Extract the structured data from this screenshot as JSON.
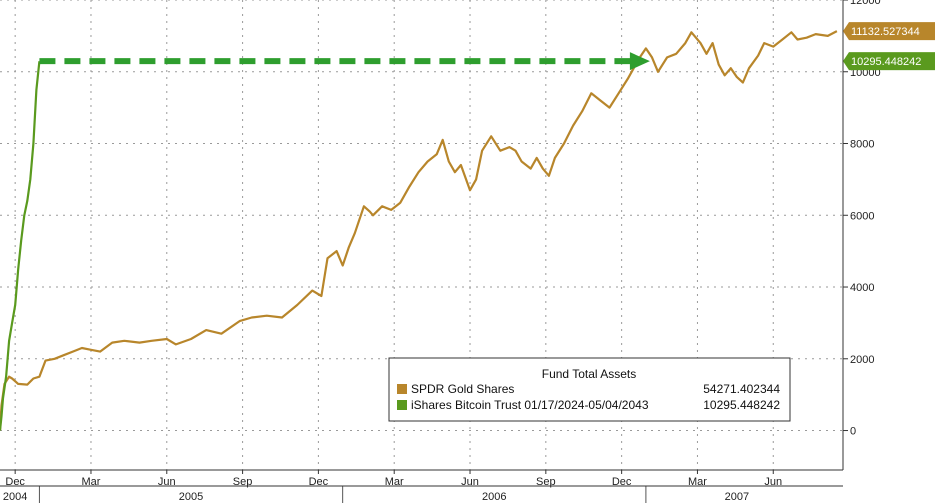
{
  "chart_data": {
    "type": "line",
    "title": "",
    "xlabel": "",
    "ylabel": "",
    "ylim": [
      -1100,
      12000
    ],
    "y_ticks": [
      0,
      2000,
      4000,
      6000,
      8000,
      10000,
      12000
    ],
    "grid": true,
    "legend": {
      "title": "Fund Total Assets",
      "placement": "bottom-right",
      "entries": [
        {
          "name": "SPDR Gold Shares",
          "value": "54271.402344",
          "color": "#B8862B"
        },
        {
          "name": "iShares Bitcoin Trust 01/17/2024-05/04/2043",
          "value": "10295.448242",
          "color": "#5A9A1E"
        }
      ]
    },
    "x_axis": {
      "month_ticks": [
        {
          "label": "Dec",
          "x": 2004.92
        },
        {
          "label": "Mar",
          "x": 2005.17
        },
        {
          "label": "Jun",
          "x": 2005.42
        },
        {
          "label": "Sep",
          "x": 2005.67
        },
        {
          "label": "Dec",
          "x": 2005.92
        },
        {
          "label": "Mar",
          "x": 2006.17
        },
        {
          "label": "Jun",
          "x": 2006.42
        },
        {
          "label": "Sep",
          "x": 2006.67
        },
        {
          "label": "Dec",
          "x": 2006.92
        },
        {
          "label": "Mar",
          "x": 2007.17
        },
        {
          "label": "Jun",
          "x": 2007.42
        }
      ],
      "year_labels": [
        {
          "label": "2004",
          "x": 2004.92
        },
        {
          "label": "2005",
          "x": 2005.5
        },
        {
          "label": "2006",
          "x": 2006.5
        },
        {
          "label": "2007",
          "x": 2007.3
        }
      ],
      "year_boundaries": [
        2005.0,
        2006.0,
        2007.0
      ],
      "range": [
        2004.87,
        2007.65
      ]
    },
    "series": [
      {
        "name": "SPDR Gold Shares",
        "color": "#B8862B",
        "last_value": "11132.527344",
        "points": [
          [
            2004.87,
            0
          ],
          [
            2004.875,
            700
          ],
          [
            2004.885,
            1300
          ],
          [
            2004.9,
            1500
          ],
          [
            2004.91,
            1450
          ],
          [
            2004.93,
            1300
          ],
          [
            2004.96,
            1280
          ],
          [
            2004.98,
            1450
          ],
          [
            2005.0,
            1500
          ],
          [
            2005.02,
            1950
          ],
          [
            2005.05,
            2000
          ],
          [
            2005.08,
            2100
          ],
          [
            2005.11,
            2200
          ],
          [
            2005.14,
            2300
          ],
          [
            2005.17,
            2250
          ],
          [
            2005.2,
            2200
          ],
          [
            2005.24,
            2450
          ],
          [
            2005.28,
            2500
          ],
          [
            2005.33,
            2450
          ],
          [
            2005.37,
            2500
          ],
          [
            2005.42,
            2550
          ],
          [
            2005.45,
            2400
          ],
          [
            2005.5,
            2550
          ],
          [
            2005.55,
            2800
          ],
          [
            2005.6,
            2700
          ],
          [
            2005.66,
            3050
          ],
          [
            2005.7,
            3150
          ],
          [
            2005.75,
            3200
          ],
          [
            2005.8,
            3150
          ],
          [
            2005.85,
            3500
          ],
          [
            2005.9,
            3900
          ],
          [
            2005.93,
            3750
          ],
          [
            2005.95,
            4800
          ],
          [
            2005.98,
            5000
          ],
          [
            2006.0,
            4600
          ],
          [
            2006.02,
            5100
          ],
          [
            2006.04,
            5500
          ],
          [
            2006.07,
            6250
          ],
          [
            2006.09,
            6100
          ],
          [
            2006.1,
            6000
          ],
          [
            2006.13,
            6250
          ],
          [
            2006.16,
            6150
          ],
          [
            2006.19,
            6350
          ],
          [
            2006.22,
            6800
          ],
          [
            2006.25,
            7200
          ],
          [
            2006.28,
            7500
          ],
          [
            2006.31,
            7700
          ],
          [
            2006.33,
            8100
          ],
          [
            2006.35,
            7500
          ],
          [
            2006.37,
            7200
          ],
          [
            2006.39,
            7400
          ],
          [
            2006.42,
            6700
          ],
          [
            2006.44,
            7000
          ],
          [
            2006.46,
            7800
          ],
          [
            2006.49,
            8200
          ],
          [
            2006.52,
            7800
          ],
          [
            2006.55,
            7900
          ],
          [
            2006.57,
            7800
          ],
          [
            2006.59,
            7500
          ],
          [
            2006.62,
            7300
          ],
          [
            2006.64,
            7600
          ],
          [
            2006.66,
            7300
          ],
          [
            2006.68,
            7100
          ],
          [
            2006.7,
            7600
          ],
          [
            2006.73,
            8000
          ],
          [
            2006.76,
            8500
          ],
          [
            2006.79,
            8900
          ],
          [
            2006.82,
            9400
          ],
          [
            2006.85,
            9200
          ],
          [
            2006.88,
            9000
          ],
          [
            2006.91,
            9400
          ],
          [
            2006.94,
            9800
          ],
          [
            2006.98,
            10400
          ],
          [
            2007.0,
            10650
          ],
          [
            2007.02,
            10400
          ],
          [
            2007.04,
            10000
          ],
          [
            2007.07,
            10400
          ],
          [
            2007.1,
            10500
          ],
          [
            2007.13,
            10800
          ],
          [
            2007.15,
            11100
          ],
          [
            2007.18,
            10800
          ],
          [
            2007.2,
            10500
          ],
          [
            2007.22,
            10800
          ],
          [
            2007.24,
            10200
          ],
          [
            2007.26,
            9900
          ],
          [
            2007.28,
            10100
          ],
          [
            2007.3,
            9850
          ],
          [
            2007.32,
            9700
          ],
          [
            2007.34,
            10100
          ],
          [
            2007.37,
            10450
          ],
          [
            2007.39,
            10800
          ],
          [
            2007.42,
            10700
          ],
          [
            2007.45,
            10900
          ],
          [
            2007.48,
            11100
          ],
          [
            2007.5,
            10900
          ],
          [
            2007.53,
            10950
          ],
          [
            2007.56,
            11050
          ],
          [
            2007.6,
            11000
          ],
          [
            2007.63,
            11133
          ]
        ]
      },
      {
        "name": "iShares Bitcoin Trust 01/17/2024-05/04/2043",
        "color": "#5A9A1E",
        "last_value": "10295.448242",
        "points": [
          [
            2004.87,
            0
          ],
          [
            2004.875,
            400
          ],
          [
            2004.88,
            900
          ],
          [
            2004.89,
            1500
          ],
          [
            2004.9,
            2500
          ],
          [
            2004.91,
            3000
          ],
          [
            2004.92,
            3500
          ],
          [
            2004.93,
            4500
          ],
          [
            2004.94,
            5300
          ],
          [
            2004.95,
            6000
          ],
          [
            2004.96,
            6400
          ],
          [
            2004.97,
            7000
          ],
          [
            2004.98,
            8000
          ],
          [
            2004.99,
            9500
          ],
          [
            2005.0,
            10295
          ]
        ]
      }
    ],
    "annotation": {
      "type": "dashed-arrow",
      "color": "#2E9E2E",
      "from": [
        2005.0,
        10295
      ],
      "to": [
        2007.0,
        10295
      ]
    }
  }
}
